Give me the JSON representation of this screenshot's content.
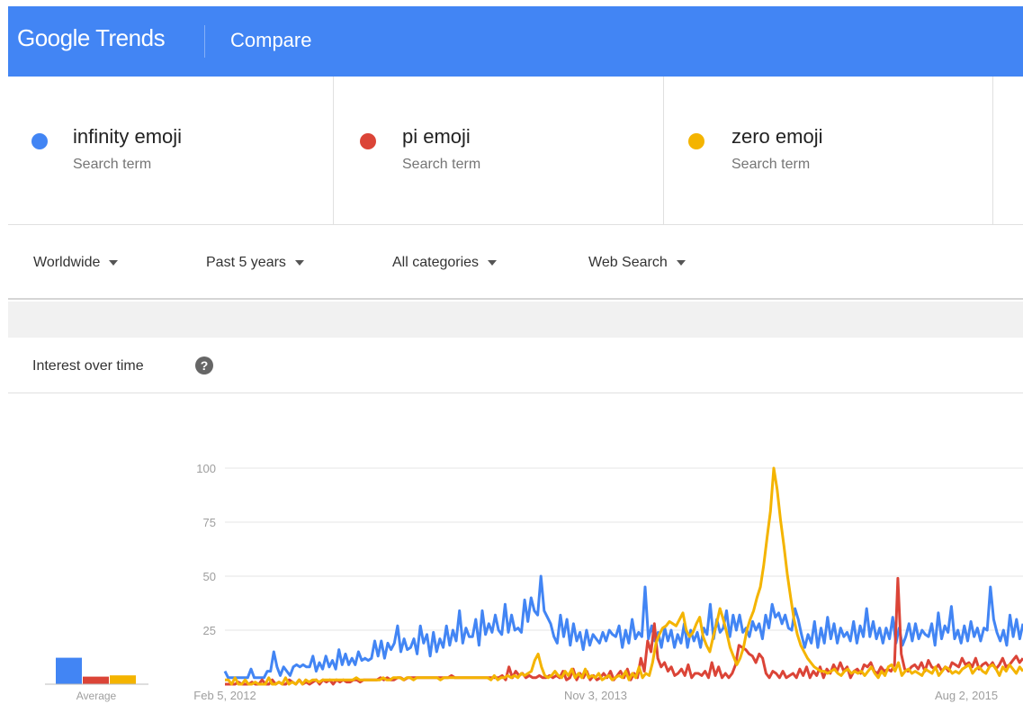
{
  "header": {
    "brand_google": "Google",
    "brand_trends": "Trends",
    "section": "Compare",
    "color": "#4285f4"
  },
  "terms": [
    {
      "name": "infinity emoji",
      "type": "Search term",
      "color": "#4285f4"
    },
    {
      "name": "pi emoji",
      "type": "Search term",
      "color": "#db4437"
    },
    {
      "name": "zero emoji",
      "type": "Search term",
      "color": "#f4b400"
    }
  ],
  "filters": {
    "region": "Worldwide",
    "time": "Past 5 years",
    "category": "All categories",
    "property": "Web Search"
  },
  "interest": {
    "title": "Interest over time",
    "help_icon": "question-circle-icon"
  },
  "chart_data": {
    "type": "line",
    "ylim": [
      0,
      100
    ],
    "yticks": [
      "100",
      "75",
      "50",
      "25"
    ],
    "xtick_labels": [
      "Feb 5, 2012",
      "Nov 3, 2013",
      "Aug 2, 2015"
    ],
    "grid": true,
    "series": [
      {
        "name": "infinity emoji",
        "color": "#4285f4",
        "values": [
          6,
          3,
          3,
          3,
          3,
          3,
          3,
          3,
          7,
          3,
          3,
          3,
          3,
          6,
          6,
          15,
          8,
          4,
          8,
          6,
          4,
          8,
          9,
          8,
          9,
          8,
          8,
          13,
          6,
          10,
          7,
          13,
          8,
          11,
          7,
          16,
          9,
          14,
          9,
          12,
          9,
          15,
          11,
          12,
          11,
          12,
          20,
          13,
          20,
          12,
          19,
          16,
          19,
          27,
          15,
          21,
          16,
          17,
          21,
          14,
          27,
          19,
          23,
          13,
          24,
          15,
          21,
          17,
          27,
          18,
          25,
          20,
          34,
          19,
          26,
          22,
          22,
          30,
          18,
          34,
          23,
          28,
          24,
          32,
          25,
          23,
          37,
          24,
          32,
          25,
          26,
          24,
          39,
          29,
          40,
          34,
          32,
          50,
          34,
          31,
          28,
          22,
          19,
          32,
          22,
          30,
          18,
          28,
          20,
          24,
          16,
          25,
          18,
          23,
          21,
          19,
          24,
          20,
          25,
          23,
          22,
          27,
          17,
          25,
          19,
          30,
          21,
          24,
          22,
          45,
          21,
          27,
          20,
          24,
          17,
          26,
          20,
          25,
          17,
          23,
          19,
          28,
          17,
          25,
          20,
          24,
          17,
          26,
          23,
          37,
          21,
          30,
          24,
          26,
          34,
          22,
          32,
          25,
          32,
          24,
          26,
          22,
          29,
          25,
          28,
          21,
          32,
          26,
          37,
          31,
          33,
          28,
          32,
          26,
          25,
          35,
          30,
          23,
          17,
          23,
          19,
          29,
          17,
          26,
          19,
          31,
          21,
          28,
          19,
          26,
          22,
          24,
          20,
          29,
          19,
          27,
          22,
          35,
          22,
          29,
          21,
          26,
          19,
          26,
          21,
          31,
          19,
          26,
          18,
          22,
          28,
          20,
          28,
          21,
          25,
          23,
          22,
          28,
          18,
          33,
          21,
          27,
          24,
          36,
          21,
          25,
          19,
          27,
          20,
          29,
          22,
          26,
          20,
          26,
          25,
          45,
          30,
          24,
          20,
          25,
          18,
          32,
          22,
          30,
          21,
          28
        ]
      },
      {
        "name": "pi emoji",
        "color": "#db4437",
        "values": [
          0,
          0,
          0,
          0,
          1,
          0,
          0,
          0,
          1,
          0,
          0,
          2,
          0,
          0,
          2,
          0,
          1,
          0,
          0,
          2,
          1,
          0,
          2,
          0,
          1,
          0,
          1,
          2,
          0,
          2,
          1,
          2,
          0,
          2,
          1,
          2,
          1,
          1,
          2,
          2,
          1,
          2,
          2,
          2,
          2,
          2,
          3,
          2,
          3,
          2,
          2,
          3,
          3,
          2,
          3,
          3,
          3,
          3,
          3,
          3,
          3,
          3,
          3,
          3,
          3,
          3,
          3,
          4,
          3,
          3,
          3,
          3,
          3,
          3,
          3,
          3,
          3,
          3,
          3,
          3,
          3,
          3,
          4,
          2,
          8,
          3,
          6,
          4,
          5,
          3,
          4,
          3,
          3,
          4,
          3,
          3,
          4,
          3,
          4,
          3,
          6,
          2,
          3,
          7,
          2,
          5,
          3,
          6,
          2,
          4,
          2,
          3,
          5,
          3,
          6,
          2,
          4,
          6,
          3,
          7,
          2,
          5,
          3,
          12,
          6,
          20,
          15,
          28,
          12,
          8,
          10,
          6,
          8,
          4,
          5,
          7,
          4,
          9,
          3,
          5,
          5,
          4,
          6,
          3,
          10,
          4,
          8,
          3,
          5,
          3,
          5,
          9,
          18,
          17,
          16,
          14,
          13,
          10,
          14,
          12,
          5,
          3,
          6,
          5,
          3,
          6,
          3,
          4,
          5,
          3,
          7,
          4,
          8,
          3,
          6,
          4,
          8,
          3,
          7,
          5,
          9,
          6,
          10,
          6,
          8,
          3,
          6,
          7,
          5,
          9,
          8,
          10,
          6,
          5,
          8,
          6,
          7,
          6,
          9,
          49,
          14,
          7,
          6,
          8,
          9,
          7,
          10,
          6,
          11,
          8,
          7,
          9,
          6,
          8,
          6,
          10,
          9,
          8,
          12,
          9,
          10,
          8,
          12,
          7,
          9,
          10,
          8,
          10,
          7,
          9,
          12,
          8,
          9,
          11,
          13,
          10,
          12
        ]
      },
      {
        "name": "zero emoji",
        "color": "#f4b400",
        "values": [
          2,
          2,
          0,
          3,
          0,
          0,
          2,
          0,
          0,
          1,
          0,
          0,
          0,
          3,
          0,
          0,
          1,
          0,
          3,
          0,
          1,
          0,
          2,
          0,
          2,
          1,
          2,
          2,
          1,
          2,
          2,
          2,
          2,
          2,
          2,
          2,
          2,
          2,
          2,
          3,
          2,
          2,
          2,
          2,
          2,
          2,
          2,
          3,
          2,
          2,
          3,
          3,
          3,
          2,
          3,
          3,
          2,
          3,
          3,
          3,
          3,
          3,
          3,
          3,
          2,
          3,
          3,
          3,
          3,
          3,
          3,
          3,
          3,
          3,
          3,
          3,
          3,
          3,
          3,
          2,
          4,
          2,
          3,
          3,
          4,
          3,
          4,
          3,
          5,
          4,
          5,
          6,
          11,
          14,
          8,
          4,
          3,
          4,
          6,
          4,
          3,
          6,
          4,
          7,
          3,
          5,
          3,
          7,
          3,
          4,
          3,
          5,
          2,
          3,
          4,
          2,
          3,
          4,
          3,
          6,
          2,
          5,
          3,
          8,
          3,
          5,
          4,
          10,
          19,
          23,
          26,
          27,
          29,
          28,
          27,
          30,
          33,
          25,
          22,
          24,
          28,
          31,
          22,
          18,
          15,
          22,
          28,
          35,
          30,
          24,
          17,
          13,
          9,
          12,
          17,
          25,
          30,
          34,
          40,
          45,
          55,
          68,
          80,
          100,
          90,
          76,
          64,
          51,
          40,
          30,
          23,
          18,
          15,
          12,
          10,
          8,
          7,
          6,
          6,
          5,
          6,
          7,
          5,
          4,
          6,
          7,
          5,
          6,
          5,
          6,
          4,
          6,
          8,
          5,
          3,
          6,
          4,
          8,
          9,
          6,
          10,
          4,
          6,
          7,
          5,
          6,
          5,
          4,
          7,
          6,
          5,
          8,
          4,
          6,
          8,
          7,
          5,
          6,
          5,
          7,
          8,
          9,
          5,
          7,
          8,
          6,
          5,
          8,
          9,
          7,
          4,
          8,
          6,
          9,
          7,
          5,
          8,
          6
        ]
      }
    ],
    "averages": {
      "label": "Average",
      "values": [
        21,
        6,
        7
      ]
    }
  }
}
